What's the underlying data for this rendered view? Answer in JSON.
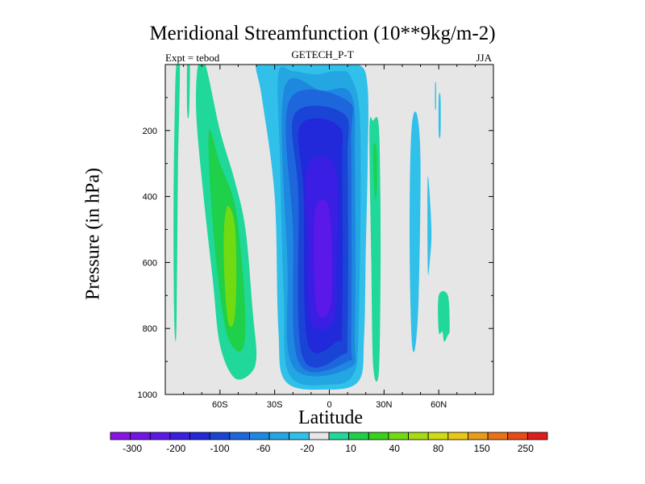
{
  "chart_data": {
    "type": "heatmap",
    "title": "Meridional Streamfunction (10**9kg/m-2)",
    "subtitle_left": "Expt = tebod",
    "subtitle_center": "GETECH_P-T",
    "subtitle_right": "JJA",
    "xlabel": "Latitude",
    "ylabel": "Pressure (in hPa)",
    "x_range": [
      -90,
      90
    ],
    "y_range": [
      0,
      1000
    ],
    "x_ticks": [
      {
        "value": -60,
        "label": "60S"
      },
      {
        "value": -30,
        "label": "30S"
      },
      {
        "value": 0,
        "label": "0"
      },
      {
        "value": 30,
        "label": "30N"
      },
      {
        "value": 60,
        "label": "60N"
      }
    ],
    "y_ticks": [
      {
        "value": 200,
        "label": "200"
      },
      {
        "value": 400,
        "label": "400"
      },
      {
        "value": 600,
        "label": "600"
      },
      {
        "value": 800,
        "label": "800"
      },
      {
        "value": 1000,
        "label": "1000"
      }
    ],
    "background_color": "#e6e6e6",
    "colorbar": {
      "colors": [
        "#8a14e8",
        "#7514e6",
        "#5a19e8",
        "#3a1ee3",
        "#2229da",
        "#1a44d6",
        "#1e66db",
        "#1e88e0",
        "#23a6e2",
        "#30c0ea",
        "#e6e6e6",
        "#1fd89a",
        "#1ed04a",
        "#38d21a",
        "#72da10",
        "#a4dc10",
        "#cedb10",
        "#e8c814",
        "#e89c18",
        "#e87218",
        "#e84a18",
        "#e01b1b"
      ],
      "labels": [
        "-300",
        "-200",
        "-100",
        "-60",
        "-20",
        "10",
        "40",
        "80",
        "150",
        "250"
      ]
    },
    "features": [
      {
        "name": "southern-hemisphere-thin-cell",
        "level": "10",
        "color": "#1fd89a",
        "points": [
          [
            -84,
            0
          ],
          [
            -82,
            0
          ],
          [
            -83,
            300
          ],
          [
            -83.5,
            600
          ],
          [
            -84,
            820
          ],
          [
            -85,
            790
          ],
          [
            -85.5,
            500
          ],
          [
            -85,
            200
          ]
        ]
      },
      {
        "name": "southern-hemisphere-thin-cell-2",
        "level": "10",
        "color": "#1fd89a",
        "points": [
          [
            -78,
            0
          ],
          [
            -76.5,
            0
          ],
          [
            -77,
            150
          ],
          [
            -78,
            140
          ]
        ]
      },
      {
        "name": "southern-hemisphere-ferrel-cell",
        "level": "10",
        "color": "#1fd89a",
        "points": [
          [
            -72,
            0
          ],
          [
            -68,
            0
          ],
          [
            -60,
            200
          ],
          [
            -52,
            350
          ],
          [
            -46,
            500
          ],
          [
            -42,
            750
          ],
          [
            -40,
            880
          ],
          [
            -43,
            935
          ],
          [
            -52,
            950
          ],
          [
            -60,
            850
          ],
          [
            -64,
            650
          ],
          [
            -69,
            400
          ],
          [
            -73,
            150
          ]
        ]
      },
      {
        "name": "southern-hemisphere-ferrel-core-40",
        "level": "40",
        "color": "#1ed04a",
        "points": [
          [
            -66,
            200
          ],
          [
            -60,
            300
          ],
          [
            -52,
            420
          ],
          [
            -48,
            600
          ],
          [
            -46,
            800
          ],
          [
            -49,
            870
          ],
          [
            -56,
            820
          ],
          [
            -61,
            650
          ],
          [
            -65,
            400
          ]
        ]
      },
      {
        "name": "southern-hemisphere-ferrel-core-80",
        "level": "80",
        "color": "#72da10",
        "points": [
          [
            -56,
            430
          ],
          [
            -52,
            480
          ],
          [
            -51,
            640
          ],
          [
            -52,
            770
          ],
          [
            -55,
            790
          ],
          [
            -57,
            700
          ],
          [
            -58,
            530
          ]
        ]
      },
      {
        "name": "hadley-cell-m20",
        "level": "-20",
        "color": "#30c0ea",
        "points": [
          [
            -40,
            0
          ],
          [
            -30,
            0
          ],
          [
            -26,
            0
          ],
          [
            -4,
            0
          ],
          [
            -2,
            0
          ],
          [
            16,
            0
          ],
          [
            21,
            70
          ],
          [
            21,
            300
          ],
          [
            20,
            560
          ],
          [
            19,
            830
          ],
          [
            16,
            960
          ],
          [
            -2,
            985
          ],
          [
            -24,
            960
          ],
          [
            -28,
            800
          ],
          [
            -30,
            400
          ],
          [
            -37,
            100
          ]
        ]
      },
      {
        "name": "hadley-cell-m60",
        "level": "-60",
        "color": "#23a6e2",
        "points": [
          [
            -28,
            30
          ],
          [
            -20,
            20
          ],
          [
            -8,
            30
          ],
          [
            4,
            20
          ],
          [
            12,
            40
          ],
          [
            17,
            200
          ],
          [
            16,
            800
          ],
          [
            13,
            940
          ],
          [
            0,
            970
          ],
          [
            -22,
            940
          ],
          [
            -25,
            700
          ],
          [
            -27,
            300
          ]
        ]
      },
      {
        "name": "hadley-cell-m100",
        "level": "-100",
        "color": "#1e88e0",
        "points": [
          [
            -25,
            80
          ],
          [
            -4,
            80
          ],
          [
            12,
            90
          ],
          [
            14,
            300
          ],
          [
            14,
            800
          ],
          [
            11,
            920
          ],
          [
            -20,
            915
          ],
          [
            -23,
            600
          ]
        ]
      },
      {
        "name": "hadley-cell-m150",
        "level": "-150",
        "color": "#1e66db",
        "points": [
          [
            -22,
            110
          ],
          [
            10,
            110
          ],
          [
            12,
            250
          ],
          [
            12,
            820
          ],
          [
            10,
            900
          ],
          [
            -17,
            900
          ],
          [
            -20,
            500
          ]
        ]
      },
      {
        "name": "hadley-cell-m200",
        "level": "-200",
        "color": "#1a44d6",
        "points": [
          [
            -19,
            150
          ],
          [
            8,
            150
          ],
          [
            10,
            300
          ],
          [
            10,
            800
          ],
          [
            7,
            880
          ],
          [
            -15,
            880
          ],
          [
            -17,
            400
          ]
        ]
      },
      {
        "name": "hadley-cell-m250",
        "level": "-250",
        "color": "#2229da",
        "points": [
          [
            -16,
            185
          ],
          [
            5,
            185
          ],
          [
            7,
            320
          ],
          [
            7,
            780
          ],
          [
            4,
            840
          ],
          [
            -12,
            840
          ],
          [
            -14,
            400
          ]
        ]
      },
      {
        "name": "hadley-cell-m300",
        "level": "-300",
        "color": "#3a1ee3",
        "points": [
          [
            -12,
            310
          ],
          [
            3,
            310
          ],
          [
            4,
            600
          ],
          [
            2,
            780
          ],
          [
            -10,
            780
          ],
          [
            -12,
            550
          ]
        ]
      },
      {
        "name": "hadley-cell-core",
        "level": "< -300",
        "color": "#5a19e8",
        "points": [
          [
            -8,
            450
          ],
          [
            0,
            440
          ],
          [
            1,
            720
          ],
          [
            -7,
            740
          ]
        ]
      },
      {
        "name": "northern-hemisphere-cell-10",
        "level": "10",
        "color": "#1fd89a",
        "points": [
          [
            22,
            200
          ],
          [
            24,
            170
          ],
          [
            27,
            180
          ],
          [
            28,
            400
          ],
          [
            28,
            700
          ],
          [
            27,
            940
          ],
          [
            24,
            910
          ],
          [
            23,
            600
          ]
        ]
      },
      {
        "name": "northern-hemisphere-cell-40",
        "level": "40",
        "color": "#1ed04a",
        "points": [
          [
            24,
            250
          ],
          [
            26,
            260
          ],
          [
            26,
            380
          ],
          [
            25,
            400
          ]
        ]
      },
      {
        "name": "northern-hemisphere-polar-m20a",
        "level": "-20",
        "color": "#30c0ea",
        "points": [
          [
            45,
            200
          ],
          [
            48,
            150
          ],
          [
            50,
            300
          ],
          [
            49,
            700
          ],
          [
            47,
            860
          ],
          [
            45,
            820
          ],
          [
            44,
            500
          ]
        ]
      },
      {
        "name": "northern-hemisphere-polar-m20b",
        "level": "-20",
        "color": "#30c0ea",
        "points": [
          [
            54,
            340
          ],
          [
            56,
            500
          ],
          [
            55,
            600
          ],
          [
            54,
            620
          ]
        ]
      },
      {
        "name": "northern-hemisphere-polar-m20c",
        "level": "-20",
        "color": "#30c0ea",
        "points": [
          [
            58,
            60
          ],
          [
            58.5,
            60
          ],
          [
            58.5,
            130
          ],
          [
            58,
            130
          ]
        ]
      },
      {
        "name": "northern-hemisphere-polar-m20d",
        "level": "-20",
        "color": "#30c0ea",
        "points": [
          [
            60,
            100
          ],
          [
            61,
            100
          ],
          [
            61,
            210
          ],
          [
            60,
            210
          ]
        ]
      },
      {
        "name": "northern-hemisphere-polar-10",
        "level": "10",
        "color": "#1fd89a",
        "points": [
          [
            60,
            700
          ],
          [
            65,
            700
          ],
          [
            66,
            800
          ],
          [
            65,
            820
          ],
          [
            63,
            840
          ],
          [
            62,
            810
          ],
          [
            60,
            810
          ]
        ]
      }
    ]
  }
}
